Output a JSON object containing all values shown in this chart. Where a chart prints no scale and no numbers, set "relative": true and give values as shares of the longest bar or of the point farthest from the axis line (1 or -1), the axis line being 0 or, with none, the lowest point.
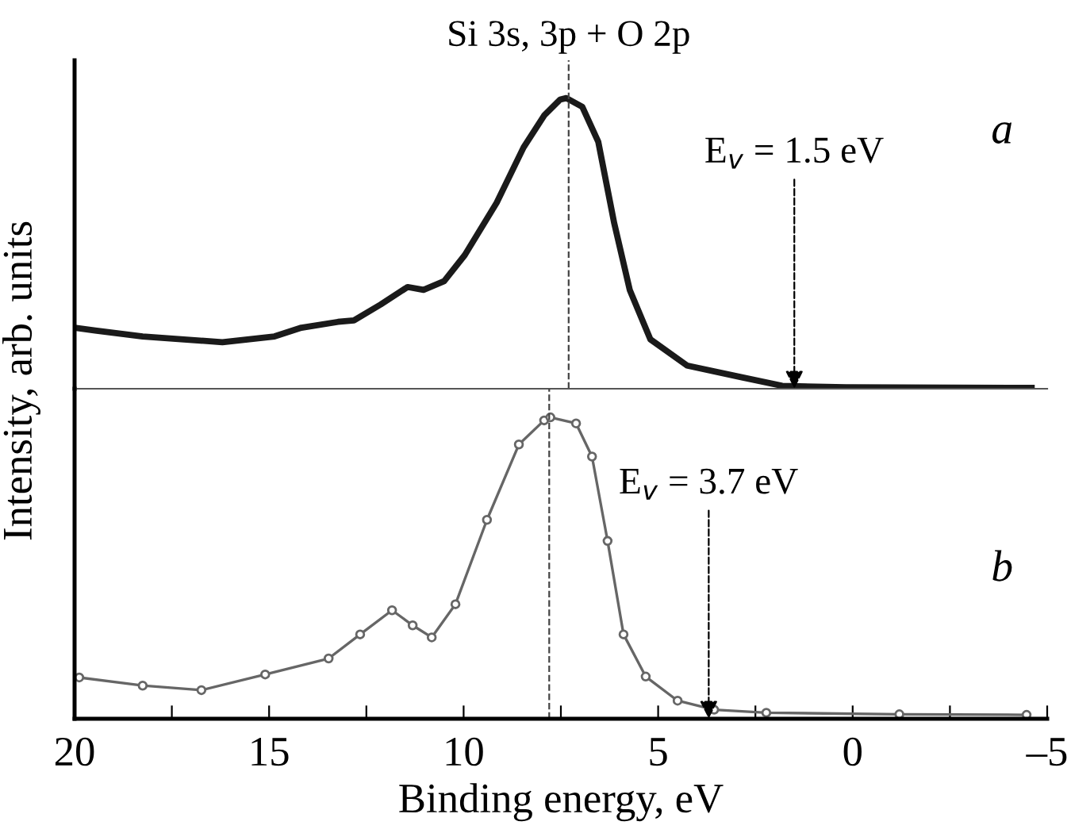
{
  "chart_data": [
    {
      "type": "line",
      "relative": true,
      "xlim": [
        20,
        -5
      ],
      "tick_labels": false,
      "ylabel": "Intensity, arb. units",
      "grid": false,
      "legend": false,
      "marker": "none",
      "line_style": "solid",
      "annotations": [
        "Si 3s, 3p + O 2p",
        {
          "text": "E$_{v}$ = 1.5 eV",
          "x": 1.5,
          "y": 0
        },
        "a"
      ],
      "ref_lines": [
        {
          "axis": "x",
          "value": 7.3,
          "label": null,
          "color": "#444444",
          "line_style": "dashed"
        }
      ],
      "series": [
        {
          "color": "#1a1a1a",
          "x": [
            20,
            19.47,
            18.25,
            16.2,
            14.86,
            14.17,
            13.23,
            12.82,
            12.13,
            11.44,
            11.03,
            10.5,
            9.97,
            9.15,
            8.46,
            7.93,
            7.52,
            7.36,
            6.95,
            6.54,
            6.13,
            5.73,
            5.2,
            4.26,
            2.87,
            1.81,
            0.18,
            -4.6
          ],
          "values": [
            0.21,
            0.2,
            0.18,
            0.16,
            0.18,
            0.21,
            0.23,
            0.235,
            0.29,
            0.35,
            0.34,
            0.37,
            0.46,
            0.64,
            0.83,
            0.94,
            0.995,
            1.0,
            0.97,
            0.85,
            0.57,
            0.34,
            0.17,
            0.08,
            0.04,
            0.01,
            0.005,
            0.003
          ]
        }
      ]
    },
    {
      "type": "line",
      "relative": true,
      "xlim": [
        20,
        -5
      ],
      "tick_labels": "x",
      "xlabel": "Binding energy, eV",
      "grid": false,
      "legend": false,
      "marker": "circle",
      "line_style": "solid",
      "xticks": [
        20,
        {
          "value": 17.5,
          "label": null
        },
        15,
        {
          "value": 12.5,
          "label": null
        },
        10,
        {
          "value": 7.5,
          "label": null
        },
        5,
        {
          "value": 2.5,
          "label": null
        },
        0,
        {
          "value": -2.5,
          "label": null
        },
        {
          "value": -5,
          "label": "–5"
        }
      ],
      "annotations": [
        {
          "text": "E$_{v}$ = 3.7 eV",
          "x": 3.7,
          "y": 0
        },
        "b"
      ],
      "ref_lines": [
        {
          "axis": "x",
          "value": 7.8,
          "label": null,
          "color": "#444444",
          "line_style": "dashed"
        }
      ],
      "series": [
        {
          "color": "#666666",
          "x": [
            19.88,
            18.25,
            16.74,
            15.1,
            13.47,
            12.66,
            11.84,
            11.31,
            10.82,
            10.21,
            9.4,
            8.58,
            7.93,
            7.77,
            7.11,
            6.7,
            6.3,
            5.89,
            5.32,
            4.5,
            3.56,
            2.22,
            -1.2,
            -4.47
          ],
          "values": [
            0.137,
            0.11,
            0.095,
            0.147,
            0.2,
            0.28,
            0.36,
            0.31,
            0.27,
            0.38,
            0.66,
            0.91,
            0.99,
            1.0,
            0.98,
            0.87,
            0.59,
            0.28,
            0.14,
            0.06,
            0.03,
            0.02,
            0.015,
            0.013
          ]
        }
      ]
    }
  ]
}
